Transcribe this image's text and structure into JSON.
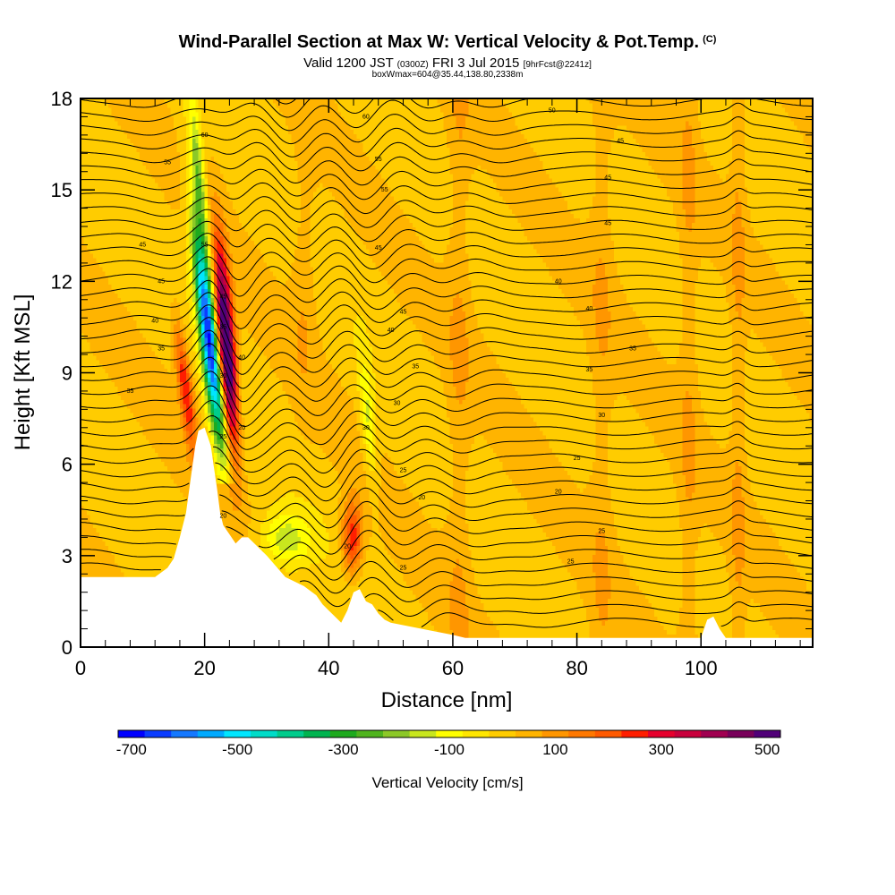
{
  "header": {
    "title": "Wind-Parallel Section at Max W: Vertical Velocity & Pot.Temp.",
    "copyright": "(C)",
    "subtitle_a": "Valid 1200 JST",
    "subtitle_b": "(0300Z)",
    "subtitle_c": "FRI 3 Jul 2015",
    "subtitle_d": "[9hrFcst@2241z]",
    "subtitle2": "boxWmax=604@35.44,138.80,2338m"
  },
  "chart_data": {
    "type": "heatmap",
    "title": "Wind-Parallel Section at Max W: Vertical Velocity & Pot.Temp.",
    "xlabel": "Distance [nm]",
    "ylabel": "Height [Kft MSL]",
    "xlim": [
      0,
      118
    ],
    "ylim": [
      0,
      18
    ],
    "x_ticks": [
      "0",
      "20",
      "40",
      "60",
      "80",
      "100"
    ],
    "y_ticks": [
      "0",
      "3",
      "6",
      "9",
      "12",
      "15",
      "18"
    ],
    "colorbar": {
      "label": "Vertical Velocity [cm/s]",
      "ticks": [
        "-700",
        "-500",
        "-300",
        "-100",
        "100",
        "300",
        "500"
      ],
      "colors": [
        "#0000ff",
        "#0a3cff",
        "#1478ff",
        "#00aaff",
        "#00e6ff",
        "#00dcc8",
        "#00cc8c",
        "#00b450",
        "#1eaa1e",
        "#50b41e",
        "#8cc828",
        "#c8e61e",
        "#ffff00",
        "#ffe600",
        "#ffcc00",
        "#ffb400",
        "#ff9600",
        "#ff7800",
        "#ff5a00",
        "#ff1e00",
        "#e6002d",
        "#c8003c",
        "#a00050",
        "#78005a",
        "#500078"
      ]
    },
    "features": [
      {
        "name": "downdraft",
        "x": 20.5,
        "z": 10.0,
        "w_min": -650
      },
      {
        "name": "updraft",
        "x": 23.5,
        "z": 10.0,
        "w_max": 604
      },
      {
        "name": "weak updraft",
        "x": 17,
        "z": 8.5,
        "w_max": 250
      },
      {
        "name": "weak updraft",
        "x": 43.5,
        "z": 3.5,
        "w_max": 250
      },
      {
        "name": "weak downdraft",
        "x": 33,
        "z": 3.5,
        "w_min": -150
      }
    ],
    "terrain": {
      "x": [
        0,
        12,
        14,
        15,
        16,
        17,
        18,
        18.5,
        19,
        20,
        21,
        21.5,
        22,
        22.5,
        23,
        24,
        25,
        26,
        27,
        30,
        33,
        36,
        38,
        39,
        40,
        41,
        42,
        43,
        44,
        45,
        46,
        47,
        48,
        49,
        50,
        55,
        60,
        62,
        64,
        70,
        80,
        100,
        101,
        102,
        103,
        104,
        105,
        110,
        118
      ],
      "z": [
        2.3,
        2.3,
        2.6,
        2.9,
        3.6,
        4.4,
        5.9,
        6.6,
        7.1,
        7.2,
        6.6,
        5.9,
        5.2,
        4.4,
        4.0,
        3.7,
        3.4,
        3.6,
        3.6,
        3.0,
        2.3,
        2.0,
        1.7,
        1.4,
        1.2,
        1.0,
        0.8,
        1.2,
        1.8,
        1.9,
        1.5,
        1.4,
        1.1,
        0.9,
        0.8,
        0.6,
        0.4,
        0.3,
        0.3,
        0.3,
        0.3,
        0.3,
        0.9,
        1.0,
        0.6,
        0.3,
        0.3,
        0.3,
        0.3
      ]
    },
    "contour_labels": [
      {
        "x": 20,
        "z": 16.8,
        "text": "60"
      },
      {
        "x": 14,
        "z": 15.9,
        "text": "55"
      },
      {
        "x": 46,
        "z": 17.4,
        "text": "60"
      },
      {
        "x": 76,
        "z": 17.6,
        "text": "50"
      },
      {
        "x": 87,
        "z": 16.6,
        "text": "45"
      },
      {
        "x": 48,
        "z": 16.0,
        "text": "55"
      },
      {
        "x": 85,
        "z": 15.4,
        "text": "45"
      },
      {
        "x": 49,
        "z": 15.0,
        "text": "55"
      },
      {
        "x": 85,
        "z": 13.9,
        "text": "45"
      },
      {
        "x": 10,
        "z": 13.2,
        "text": "45"
      },
      {
        "x": 20,
        "z": 13.2,
        "text": "55"
      },
      {
        "x": 48,
        "z": 13.1,
        "text": "45"
      },
      {
        "x": 13,
        "z": 12.0,
        "text": "45"
      },
      {
        "x": 77,
        "z": 12.0,
        "text": "40"
      },
      {
        "x": 23,
        "z": 11.5,
        "text": "45"
      },
      {
        "x": 52,
        "z": 11.0,
        "text": "45"
      },
      {
        "x": 82,
        "z": 11.1,
        "text": "40"
      },
      {
        "x": 12,
        "z": 10.7,
        "text": "40"
      },
      {
        "x": 23,
        "z": 10.5,
        "text": "35"
      },
      {
        "x": 50,
        "z": 10.4,
        "text": "40"
      },
      {
        "x": 13,
        "z": 9.8,
        "text": "35"
      },
      {
        "x": 89,
        "z": 9.8,
        "text": "35"
      },
      {
        "x": 26,
        "z": 9.5,
        "text": "40"
      },
      {
        "x": 54,
        "z": 9.2,
        "text": "35"
      },
      {
        "x": 82,
        "z": 9.1,
        "text": "35"
      },
      {
        "x": 23,
        "z": 8.9,
        "text": "30"
      },
      {
        "x": 8,
        "z": 8.4,
        "text": "35"
      },
      {
        "x": 51,
        "z": 8.0,
        "text": "30"
      },
      {
        "x": 84,
        "z": 7.6,
        "text": "30"
      },
      {
        "x": 46,
        "z": 7.2,
        "text": "30"
      },
      {
        "x": 23,
        "z": 6.9,
        "text": "25"
      },
      {
        "x": 80,
        "z": 6.2,
        "text": "25"
      },
      {
        "x": 52,
        "z": 5.8,
        "text": "25"
      },
      {
        "x": 77,
        "z": 5.1,
        "text": "20"
      },
      {
        "x": 55,
        "z": 4.9,
        "text": "20"
      },
      {
        "x": 26,
        "z": 7.2,
        "text": "20"
      },
      {
        "x": 23,
        "z": 4.3,
        "text": "20"
      },
      {
        "x": 84,
        "z": 3.8,
        "text": "25"
      },
      {
        "x": 43,
        "z": 3.3,
        "text": "20"
      },
      {
        "x": 79,
        "z": 2.8,
        "text": "25"
      },
      {
        "x": 52,
        "z": 2.6,
        "text": "25"
      }
    ]
  }
}
